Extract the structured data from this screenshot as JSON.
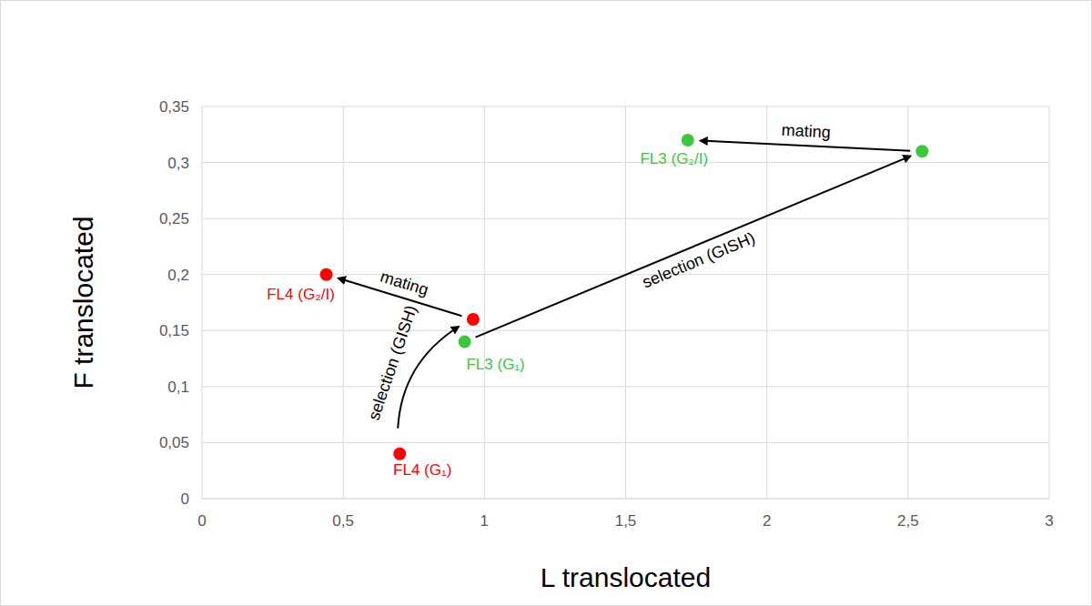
{
  "chart_data": {
    "type": "scatter",
    "x_label": "L translocated",
    "y_label": "F translocated",
    "series": [
      {
        "color": "#ff0000",
        "marker": "circle",
        "x": [
          0.7,
          0.96,
          0.44
        ],
        "values": [
          0.04,
          0.16,
          0.2
        ],
        "labels": [
          "FL4 (G₁)",
          null,
          "FL4 (G₂/I)"
        ]
      },
      {
        "color": "#3cc83c",
        "marker": "circle",
        "x": [
          0.93,
          2.55,
          1.72
        ],
        "values": [
          0.14,
          0.31,
          0.32
        ],
        "labels": [
          "FL3 (G₁)",
          null,
          "FL3 (G₂/I)"
        ]
      }
    ],
    "annotations": [
      {
        "text": "selection (GISH)"
      },
      {
        "text": "mating"
      },
      {
        "text": "selection (GISH)"
      },
      {
        "text": "mating"
      }
    ],
    "xlim": [
      0,
      3
    ],
    "xticks": [
      0,
      {
        "value": 0.5,
        "label": "0,5"
      },
      1,
      {
        "value": 1.5,
        "label": "1,5"
      },
      2,
      {
        "value": 2.5,
        "label": "2,5"
      },
      3
    ],
    "ylim": [
      0,
      0.35
    ],
    "yticks": [
      0,
      {
        "value": 0.05,
        "label": "0,05"
      },
      {
        "value": 0.1,
        "label": "0,1"
      },
      {
        "value": 0.15,
        "label": "0,15"
      },
      {
        "value": 0.2,
        "label": "0,2"
      },
      {
        "value": 0.25,
        "label": "0,25"
      },
      {
        "value": 0.3,
        "label": "0,3"
      },
      {
        "value": 0.35,
        "label": "0,35"
      }
    ],
    "grid": true
  }
}
